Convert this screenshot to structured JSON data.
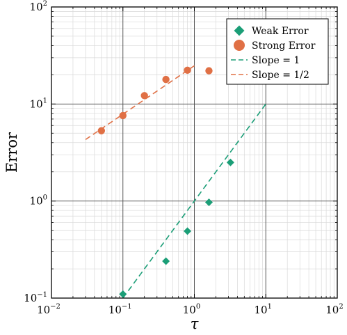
{
  "chart_data": {
    "type": "scatter",
    "xscale": "log",
    "yscale": "log",
    "xlim": [
      0.01,
      100
    ],
    "ylim": [
      0.1,
      100
    ],
    "xlabel": "τ",
    "ylabel": "Error",
    "grid": true,
    "legend_position": "top-right",
    "x_ticks": [
      {
        "base": "10",
        "exp": "−2",
        "value": 0.01
      },
      {
        "base": "10",
        "exp": "−1",
        "value": 0.1
      },
      {
        "base": "10",
        "exp": "0",
        "value": 1
      },
      {
        "base": "10",
        "exp": "1",
        "value": 10
      },
      {
        "base": "10",
        "exp": "2",
        "value": 100
      }
    ],
    "y_ticks": [
      {
        "base": "10",
        "exp": "−1",
        "value": 0.1
      },
      {
        "base": "10",
        "exp": "0",
        "value": 1
      },
      {
        "base": "10",
        "exp": "1",
        "value": 10
      },
      {
        "base": "10",
        "exp": "2",
        "value": 100
      }
    ],
    "series": [
      {
        "name": "Weak Error",
        "kind": "points",
        "marker": "diamond",
        "color": "#1b9e77",
        "x": [
          0.1,
          0.4,
          0.8,
          1.6,
          3.2
        ],
        "y": [
          0.11,
          0.24,
          0.49,
          0.97,
          2.5
        ]
      },
      {
        "name": "Strong Error",
        "kind": "points",
        "marker": "circle",
        "color": "#e07045",
        "x": [
          0.05,
          0.1,
          0.2,
          0.4,
          0.8,
          1.6
        ],
        "y": [
          5.3,
          7.6,
          12.2,
          17.9,
          22.3,
          22.0
        ]
      },
      {
        "name": "Slope = 1",
        "kind": "line",
        "dash": true,
        "color": "#1b9e77",
        "x": [
          0.1,
          10
        ],
        "y": [
          0.1,
          10
        ]
      },
      {
        "name": "Slope = 1/2",
        "kind": "line",
        "dash": true,
        "color": "#e07045",
        "x": [
          0.03,
          1.0
        ],
        "y": [
          4.3,
          24.8
        ]
      }
    ]
  }
}
